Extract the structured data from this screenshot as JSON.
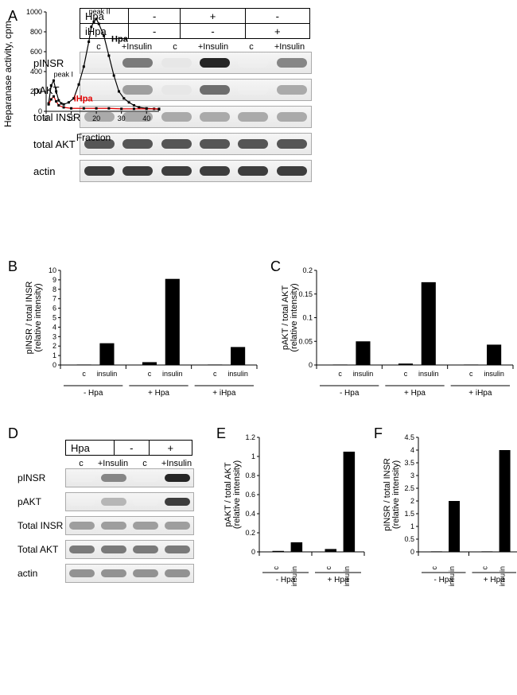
{
  "panelA": {
    "label": "A",
    "condTable": {
      "rows": [
        {
          "name": "Hpa",
          "vals": [
            "-",
            "+",
            "-"
          ]
        },
        {
          "name": "iHpa",
          "vals": [
            "-",
            "-",
            "+"
          ]
        }
      ]
    },
    "colLabels": [
      "c",
      "+Insulin",
      "c",
      "+Insulin",
      "c",
      "+Insulin"
    ],
    "blots": [
      {
        "name": "pINSR",
        "intensities": [
          0.05,
          0.55,
          0.1,
          0.9,
          0.05,
          0.5
        ]
      },
      {
        "name": "pAKT",
        "intensities": [
          0.05,
          0.4,
          0.1,
          0.6,
          0.05,
          0.35
        ]
      },
      {
        "name": "total INSR",
        "intensities": [
          0.35,
          0.35,
          0.35,
          0.35,
          0.35,
          0.35
        ]
      },
      {
        "name": "total AKT",
        "intensities": [
          0.7,
          0.7,
          0.7,
          0.7,
          0.7,
          0.7
        ]
      },
      {
        "name": "actin",
        "intensities": [
          0.8,
          0.8,
          0.8,
          0.8,
          0.8,
          0.8
        ]
      }
    ],
    "activityChart": {
      "ylabel": "Heparanase activity, cpm",
      "xlabel": "Fraction",
      "ymax": 1000,
      "yticks": [
        0,
        200,
        400,
        600,
        800,
        1000
      ],
      "xmax": 45,
      "xticks": [
        0,
        10,
        20,
        30,
        40
      ],
      "hpa_color": "#000000",
      "ihpa_color": "#e30000",
      "peak1_label": "peak I",
      "peak2_label": "peak II",
      "hpa_label": "Hpa",
      "ihpa_label": "iHpa",
      "hpa_series": [
        [
          1,
          80
        ],
        [
          2,
          260
        ],
        [
          3,
          310
        ],
        [
          4,
          200
        ],
        [
          5,
          110
        ],
        [
          6,
          80
        ],
        [
          7,
          70
        ],
        [
          9,
          90
        ],
        [
          11,
          130
        ],
        [
          13,
          270
        ],
        [
          15,
          450
        ],
        [
          17,
          700
        ],
        [
          18,
          850
        ],
        [
          19,
          900
        ],
        [
          20,
          930
        ],
        [
          21,
          880
        ],
        [
          23,
          760
        ],
        [
          25,
          560
        ],
        [
          27,
          360
        ],
        [
          29,
          200
        ],
        [
          31,
          130
        ],
        [
          33,
          90
        ],
        [
          35,
          60
        ],
        [
          37,
          40
        ],
        [
          40,
          30
        ],
        [
          43,
          25
        ],
        [
          45,
          20
        ]
      ],
      "ihpa_series": [
        [
          1,
          70
        ],
        [
          2,
          120
        ],
        [
          3,
          150
        ],
        [
          4,
          100
        ],
        [
          5,
          60
        ],
        [
          7,
          40
        ],
        [
          10,
          30
        ],
        [
          15,
          30
        ],
        [
          20,
          30
        ],
        [
          25,
          30
        ],
        [
          30,
          25
        ],
        [
          35,
          25
        ],
        [
          40,
          25
        ],
        [
          45,
          25
        ]
      ]
    }
  },
  "panelB": {
    "label": "B",
    "ylabel": "pINSR / total INSR\n(relative intensity)",
    "ymax": 10,
    "yticks": [
      0,
      1,
      2,
      3,
      4,
      5,
      6,
      7,
      8,
      9,
      10
    ],
    "groups": [
      "- Hpa",
      "+ Hpa",
      "+ iHpa"
    ],
    "subs": [
      "c",
      "insulin"
    ],
    "values": [
      0.05,
      2.3,
      0.3,
      9.1,
      0.05,
      1.9
    ],
    "bar_color": "#000000"
  },
  "panelC": {
    "label": "C",
    "ylabel": "pAKT / total AKT\n(relative intensity)",
    "ymax": 0.2,
    "yticks": [
      0.0,
      0.05,
      0.1,
      0.15,
      0.2
    ],
    "groups": [
      "- Hpa",
      "+ Hpa",
      "+ iHpa"
    ],
    "subs": [
      "c",
      "insulin"
    ],
    "values": [
      0.001,
      0.05,
      0.003,
      0.175,
      0.001,
      0.043
    ],
    "bar_color": "#000000"
  },
  "panelD": {
    "label": "D",
    "condTable": {
      "rows": [
        {
          "name": "Hpa",
          "vals": [
            "-",
            "+"
          ]
        }
      ]
    },
    "colLabels": [
      "c",
      "+Insulin",
      "c",
      "+Insulin"
    ],
    "blots": [
      {
        "name": "pINSR",
        "intensities": [
          0.05,
          0.5,
          0.05,
          0.9
        ]
      },
      {
        "name": "pAKT",
        "intensities": [
          0.05,
          0.3,
          0.05,
          0.8
        ]
      },
      {
        "name": "Total INSR",
        "intensities": [
          0.4,
          0.4,
          0.4,
          0.4
        ]
      },
      {
        "name": "Total AKT",
        "intensities": [
          0.55,
          0.55,
          0.55,
          0.55
        ]
      },
      {
        "name": "actin",
        "intensities": [
          0.45,
          0.45,
          0.45,
          0.45
        ]
      }
    ]
  },
  "panelE": {
    "label": "E",
    "ylabel": "pAKT / total AKT\n(relative intensity)",
    "ymax": 1.2,
    "yticks": [
      0.0,
      0.2,
      0.4,
      0.6,
      0.8,
      1.0,
      1.2
    ],
    "groups": [
      "- Hpa",
      "+ Hpa"
    ],
    "subs": [
      "c",
      "insulin"
    ],
    "values": [
      0.01,
      0.1,
      0.03,
      1.05
    ],
    "bar_color": "#000000"
  },
  "panelF": {
    "label": "F",
    "ylabel": "pINSR / total INSR\n(relative intensity)",
    "ymax": 4.5,
    "yticks": [
      0.0,
      0.5,
      1.0,
      1.5,
      2.0,
      2.5,
      3.0,
      3.5,
      4.0,
      4.5
    ],
    "groups": [
      "- Hpa",
      "+ Hpa"
    ],
    "subs": [
      "c",
      "insulin"
    ],
    "values": [
      0.02,
      2.0,
      0.02,
      4.0
    ],
    "bar_color": "#000000"
  }
}
